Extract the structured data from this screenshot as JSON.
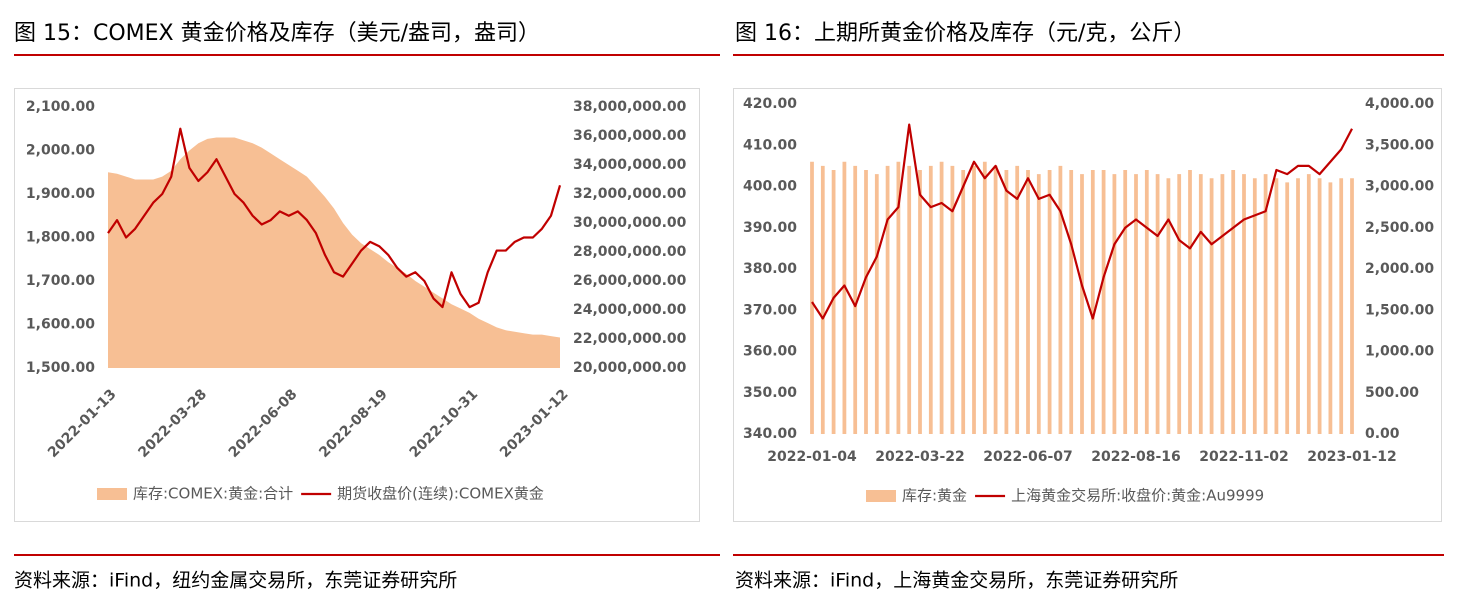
{
  "chart_data": [
    {
      "type": "combo",
      "title": "图 15：COMEX 黄金价格及库存（美元/盎司，盎司）",
      "source": "资料来源：iFind，纽约金属交易所，东莞证券研究所",
      "categories": [
        "2022-01-13",
        null,
        null,
        null,
        null,
        null,
        null,
        null,
        null,
        null,
        "2022-03-28",
        null,
        null,
        null,
        null,
        null,
        null,
        null,
        null,
        null,
        "2022-06-08",
        null,
        null,
        null,
        null,
        null,
        null,
        null,
        null,
        null,
        "2022-08-19",
        null,
        null,
        null,
        null,
        null,
        null,
        null,
        null,
        null,
        "2022-10-31",
        null,
        null,
        null,
        null,
        null,
        null,
        null,
        null,
        null,
        "2023-01-12"
      ],
      "ylim": [
        1500,
        2100
      ],
      "yticks": [
        {
          "value": 1500,
          "label": "1,500.00"
        },
        {
          "value": 1600,
          "label": "1,600.00"
        },
        {
          "value": 1700,
          "label": "1,700.00"
        },
        {
          "value": 1800,
          "label": "1,800.00"
        },
        {
          "value": 1900,
          "label": "1,900.00"
        },
        {
          "value": 2000,
          "label": "2,000.00"
        },
        {
          "value": 2100,
          "label": "2,100.00"
        }
      ],
      "y2lim": [
        20000000,
        38000000
      ],
      "y2ticks": [
        {
          "value": 20000000,
          "label": "20,000,000.00"
        },
        {
          "value": 22000000,
          "label": "22,000,000.00"
        },
        {
          "value": 24000000,
          "label": "24,000,000.00"
        },
        {
          "value": 26000000,
          "label": "26,000,000.00"
        },
        {
          "value": 28000000,
          "label": "28,000,000.00"
        },
        {
          "value": 30000000,
          "label": "30,000,000.00"
        },
        {
          "value": 32000000,
          "label": "32,000,000.00"
        },
        {
          "value": 34000000,
          "label": "34,000,000.00"
        },
        {
          "value": 36000000,
          "label": "36,000,000.00"
        },
        {
          "value": 38000000,
          "label": "38,000,000.00"
        }
      ],
      "grid": false,
      "series": [
        {
          "name": "库存:COMEX:黄金:合计",
          "type": "area",
          "axis": "y2",
          "color": "#f7bf94",
          "values": [
            33500000,
            33400000,
            33200000,
            33000000,
            33000000,
            33000000,
            33200000,
            33600000,
            34400000,
            35000000,
            35500000,
            35800000,
            35900000,
            35900000,
            35900000,
            35700000,
            35500000,
            35200000,
            34800000,
            34400000,
            34000000,
            33600000,
            33200000,
            32500000,
            31800000,
            31000000,
            30000000,
            29200000,
            28600000,
            28200000,
            27800000,
            27300000,
            26900000,
            26500000,
            26000000,
            25600000,
            25200000,
            24800000,
            24400000,
            24100000,
            23800000,
            23400000,
            23100000,
            22800000,
            22600000,
            22500000,
            22400000,
            22300000,
            22300000,
            22200000,
            22100000
          ]
        },
        {
          "name": "期货收盘价(连续):COMEX黄金",
          "type": "line",
          "color": "#c00000",
          "values": [
            1810,
            1840,
            1800,
            1820,
            1850,
            1880,
            1900,
            1940,
            2050,
            1960,
            1930,
            1950,
            1980,
            1940,
            1900,
            1880,
            1850,
            1830,
            1840,
            1860,
            1850,
            1860,
            1840,
            1810,
            1760,
            1720,
            1710,
            1740,
            1770,
            1790,
            1780,
            1760,
            1730,
            1710,
            1720,
            1700,
            1660,
            1640,
            1720,
            1670,
            1640,
            1650,
            1720,
            1770,
            1770,
            1790,
            1800,
            1800,
            1820,
            1850,
            1920
          ]
        }
      ]
    },
    {
      "type": "combo",
      "title": "图 16：上期所黄金价格及库存（元/克，公斤）",
      "source": "资料来源：iFind，上海黄金交易所，东莞证券研究所",
      "categories": [
        "2022-01-04",
        null,
        null,
        null,
        null,
        null,
        null,
        null,
        null,
        null,
        "2022-03-22",
        null,
        null,
        null,
        null,
        null,
        null,
        null,
        null,
        null,
        "2022-06-07",
        null,
        null,
        null,
        null,
        null,
        null,
        null,
        null,
        null,
        "2022-08-16",
        null,
        null,
        null,
        null,
        null,
        null,
        null,
        null,
        null,
        "2022-11-02",
        null,
        null,
        null,
        null,
        null,
        null,
        null,
        null,
        null,
        "2023-01-12"
      ],
      "ylim": [
        340,
        420
      ],
      "yticks": [
        {
          "value": 340,
          "label": "340.00"
        },
        {
          "value": 350,
          "label": "350.00"
        },
        {
          "value": 360,
          "label": "360.00"
        },
        {
          "value": 370,
          "label": "370.00"
        },
        {
          "value": 380,
          "label": "380.00"
        },
        {
          "value": 390,
          "label": "390.00"
        },
        {
          "value": 400,
          "label": "400.00"
        },
        {
          "value": 410,
          "label": "410.00"
        },
        {
          "value": 420,
          "label": "420.00"
        }
      ],
      "y2lim": [
        0,
        4000
      ],
      "y2ticks": [
        {
          "value": 0,
          "label": "0.00"
        },
        {
          "value": 500,
          "label": "500.00"
        },
        {
          "value": 1000,
          "label": "1,000.00"
        },
        {
          "value": 1500,
          "label": "1,500.00"
        },
        {
          "value": 2000,
          "label": "2,000.00"
        },
        {
          "value": 2500,
          "label": "2,500.00"
        },
        {
          "value": 3000,
          "label": "3,000.00"
        },
        {
          "value": 3500,
          "label": "3,500.00"
        },
        {
          "value": 4000,
          "label": "4,000.00"
        }
      ],
      "grid": false,
      "series": [
        {
          "name": "库存:黄金",
          "type": "bar",
          "axis": "y2",
          "color": "#f7bf94",
          "values": [
            3300,
            3250,
            3200,
            3300,
            3250,
            3200,
            3150,
            3250,
            3300,
            3250,
            3200,
            3250,
            3300,
            3250,
            3200,
            3250,
            3300,
            3250,
            3200,
            3250,
            3200,
            3150,
            3200,
            3250,
            3200,
            3150,
            3200,
            3200,
            3150,
            3200,
            3150,
            3200,
            3150,
            3100,
            3150,
            3200,
            3150,
            3100,
            3150,
            3200,
            3150,
            3100,
            3150,
            3100,
            3050,
            3100,
            3150,
            3100,
            3050,
            3100,
            3100
          ]
        },
        {
          "name": "上海黄金交易所:收盘价:黄金:Au9999",
          "type": "line",
          "color": "#c00000",
          "values": [
            372,
            368,
            373,
            376,
            371,
            378,
            383,
            392,
            395,
            415,
            398,
            395,
            396,
            394,
            400,
            406,
            402,
            405,
            399,
            397,
            402,
            397,
            398,
            394,
            386,
            376,
            368,
            378,
            386,
            390,
            392,
            390,
            388,
            392,
            387,
            385,
            389,
            386,
            388,
            390,
            392,
            393,
            394,
            404,
            403,
            405,
            405,
            403,
            406,
            409,
            414
          ]
        }
      ]
    }
  ]
}
